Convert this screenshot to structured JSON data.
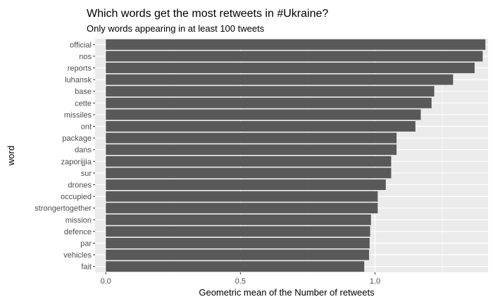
{
  "chart_data": {
    "type": "bar",
    "orientation": "horizontal",
    "title": "Which words get the most retweets in #Ukraine?",
    "subtitle": "Only words appearing in at least 100 tweets",
    "xlabel": "Geometric mean of the Number of retweets",
    "ylabel": "word",
    "xlim": [
      -0.04,
      1.42
    ],
    "x_ticks": [
      0.0,
      0.5,
      1.0
    ],
    "x_tick_labels": [
      "0.0",
      "0.5",
      "1.0"
    ],
    "grid": true,
    "categories": [
      "official",
      "nos",
      "reports",
      "luhansk",
      "base",
      "cette",
      "missiles",
      "ont",
      "package",
      "dans",
      "zaporijjia",
      "sur",
      "drones",
      "occupied",
      "strongertogether",
      "mission",
      "defence",
      "par",
      "vehicles",
      "fait"
    ],
    "values": [
      1.41,
      1.4,
      1.37,
      1.29,
      1.22,
      1.21,
      1.17,
      1.15,
      1.08,
      1.08,
      1.06,
      1.06,
      1.04,
      1.01,
      1.01,
      0.985,
      0.982,
      0.98,
      0.978,
      0.96
    ],
    "colors": {
      "bar": "#595959",
      "panel": "#ebebeb",
      "grid": "#ffffff"
    }
  }
}
